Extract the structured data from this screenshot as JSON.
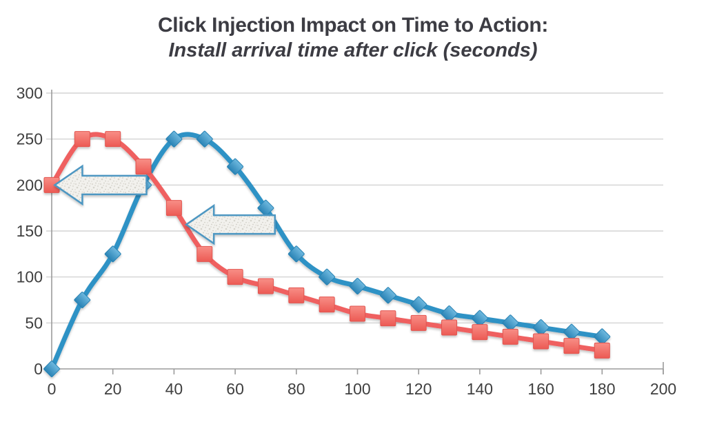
{
  "title": {
    "line1": "Click Injection Impact on Time to Action:",
    "line2": "Install arrival time after click (seconds)"
  },
  "colors": {
    "blue_line": "#2e92c5",
    "blue_marker_top": "#6fb9df",
    "blue_marker_bottom": "#2a83b5",
    "blue_marker_stroke": "#2983b4",
    "red_line": "#ef6160",
    "red_marker_top": "#f88e86",
    "red_marker_bottom": "#ec5a54",
    "red_marker_stroke": "#e25450",
    "arrow_border": "#4e97c2",
    "arrow_fill_base": "#f2f1ed",
    "gridline": "#c9c9c9",
    "axis": "#9b9b9b",
    "tick_label": "#3f3f3f",
    "title_text": "#3c3c43"
  },
  "chart_data": {
    "type": "line",
    "title": "Click Injection Impact on Time to Action: Install arrival time after click (seconds)",
    "xlabel": "",
    "ylabel": "",
    "xlim": [
      0,
      200
    ],
    "ylim": [
      0,
      300
    ],
    "x_ticks": [
      0,
      20,
      40,
      60,
      80,
      100,
      120,
      140,
      160,
      180,
      200
    ],
    "y_ticks": [
      0,
      50,
      100,
      150,
      200,
      250,
      300
    ],
    "grid": "horizontal",
    "legend": "none",
    "x": [
      0,
      10,
      20,
      30,
      40,
      50,
      60,
      70,
      80,
      90,
      100,
      110,
      120,
      130,
      140,
      150,
      160,
      170,
      180
    ],
    "series": [
      {
        "name": "blue-diamond-series",
        "marker": "diamond",
        "values": [
          0,
          75,
          125,
          200,
          250,
          250,
          220,
          175,
          125,
          100,
          90,
          80,
          70,
          60,
          55,
          50,
          45,
          40,
          35
        ]
      },
      {
        "name": "red-square-series",
        "marker": "square",
        "values": [
          200,
          250,
          250,
          220,
          175,
          125,
          100,
          90,
          80,
          70,
          60,
          55,
          50,
          45,
          40,
          35,
          30,
          25,
          20
        ]
      }
    ],
    "annotations": [
      {
        "type": "arrow-left",
        "from_x": 31,
        "to_x": 1,
        "y": 200
      },
      {
        "type": "arrow-left",
        "from_x": 73,
        "to_x": 44,
        "y": 157
      }
    ]
  }
}
